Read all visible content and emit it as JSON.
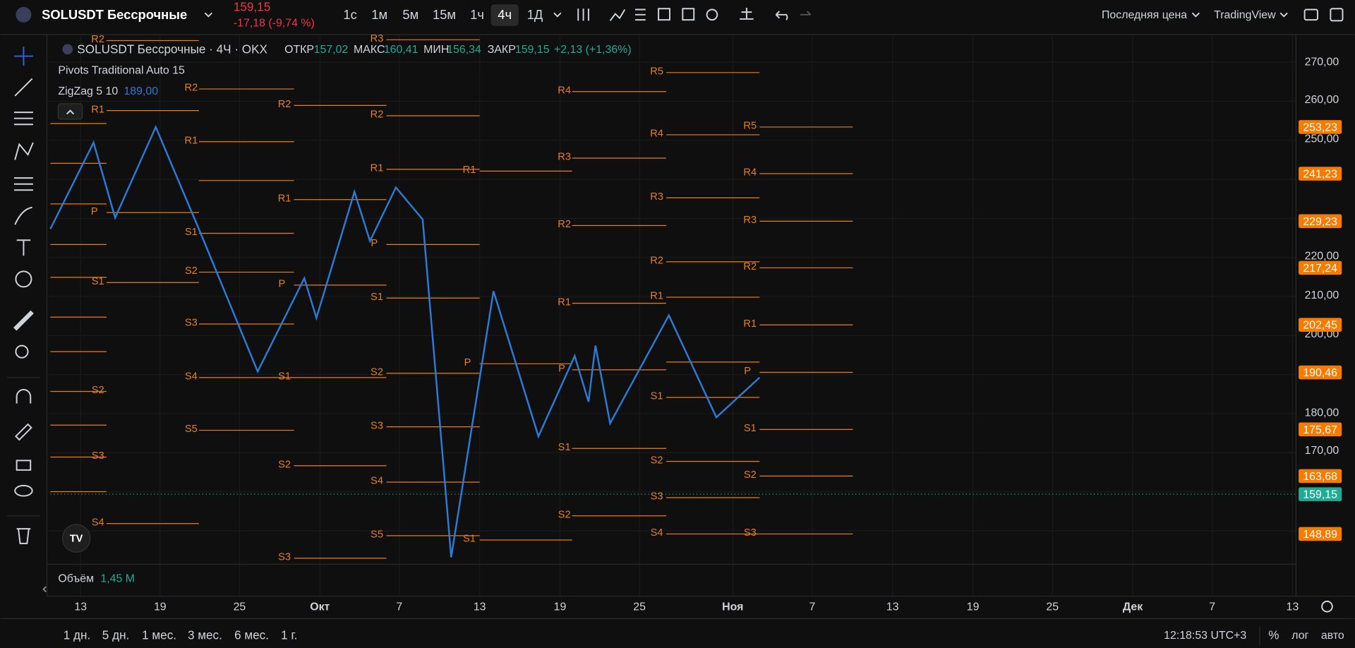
{
  "header": {
    "symbol": "SOLUSDT Бессрочные",
    "price": "159,15",
    "change": "-17,18 (-9,74 %)",
    "timeframes": [
      "1с",
      "1м",
      "5м",
      "15м",
      "1ч",
      "4ч",
      "1Д"
    ],
    "price_type": "Последняя цена",
    "brand": "TradingView"
  },
  "legend": {
    "title": "SOLUSDT Бессрочные · 4Ч · OKX",
    "open_label": "ОТКР",
    "open": "157,02",
    "high_label": "МАКС",
    "high": "160,41",
    "low_label": "МИН",
    "low": "156,34",
    "close_label": "ЗАКР",
    "close": "159,15",
    "change": "+2,13 (+1,36%)",
    "pivots": "Pivots Traditional Auto 15",
    "zigzag": "ZigZag 5 10",
    "zigzag_value": "189,00"
  },
  "pivot_labels": [
    "R2",
    "R1",
    "P",
    "S1",
    "S2",
    "S3",
    "S4",
    "R2",
    "R1",
    "S1",
    "S2",
    "S3",
    "S4",
    "S5",
    "R3",
    "R2",
    "R1",
    "P",
    "S1",
    "S2",
    "S3",
    "R2",
    "R1",
    "P",
    "S1",
    "S2",
    "S3",
    "S4",
    "S5",
    "R1",
    "P",
    "S1",
    "R4",
    "R3",
    "R2",
    "R1",
    "P",
    "S1",
    "S2",
    "R5",
    "R4",
    "R3",
    "R2",
    "R1",
    "S1",
    "S2",
    "S3",
    "S4",
    "R5",
    "R4",
    "R3",
    "R2",
    "R1",
    "P",
    "S1",
    "S2",
    "S3"
  ],
  "price_axis": {
    "labels": [
      "270,00",
      "260,00",
      "250,00",
      "220,00",
      "210,00",
      "200,00",
      "180,00",
      "170,00"
    ],
    "badges": [
      "253,23",
      "241,23",
      "229,23",
      "217,24",
      "202,45",
      "190,46",
      "175,67",
      "163,68",
      "148,89"
    ],
    "last": "159,15"
  },
  "volume": {
    "label": "Объём",
    "value": "1,45 M"
  },
  "time_axis": [
    "13",
    "19",
    "25",
    "Окт",
    "7",
    "13",
    "19",
    "25",
    "Ноя",
    "7",
    "13",
    "19",
    "25",
    "Дек",
    "7",
    "13"
  ],
  "footer": {
    "ranges": [
      "1 дн.",
      "5 дн.",
      "1 мес.",
      "3 мес.",
      "6 мес.",
      "1 г."
    ],
    "clock": "12:18:53 UTC+3",
    "percent": "%",
    "log": "лог",
    "auto": "авто"
  }
}
